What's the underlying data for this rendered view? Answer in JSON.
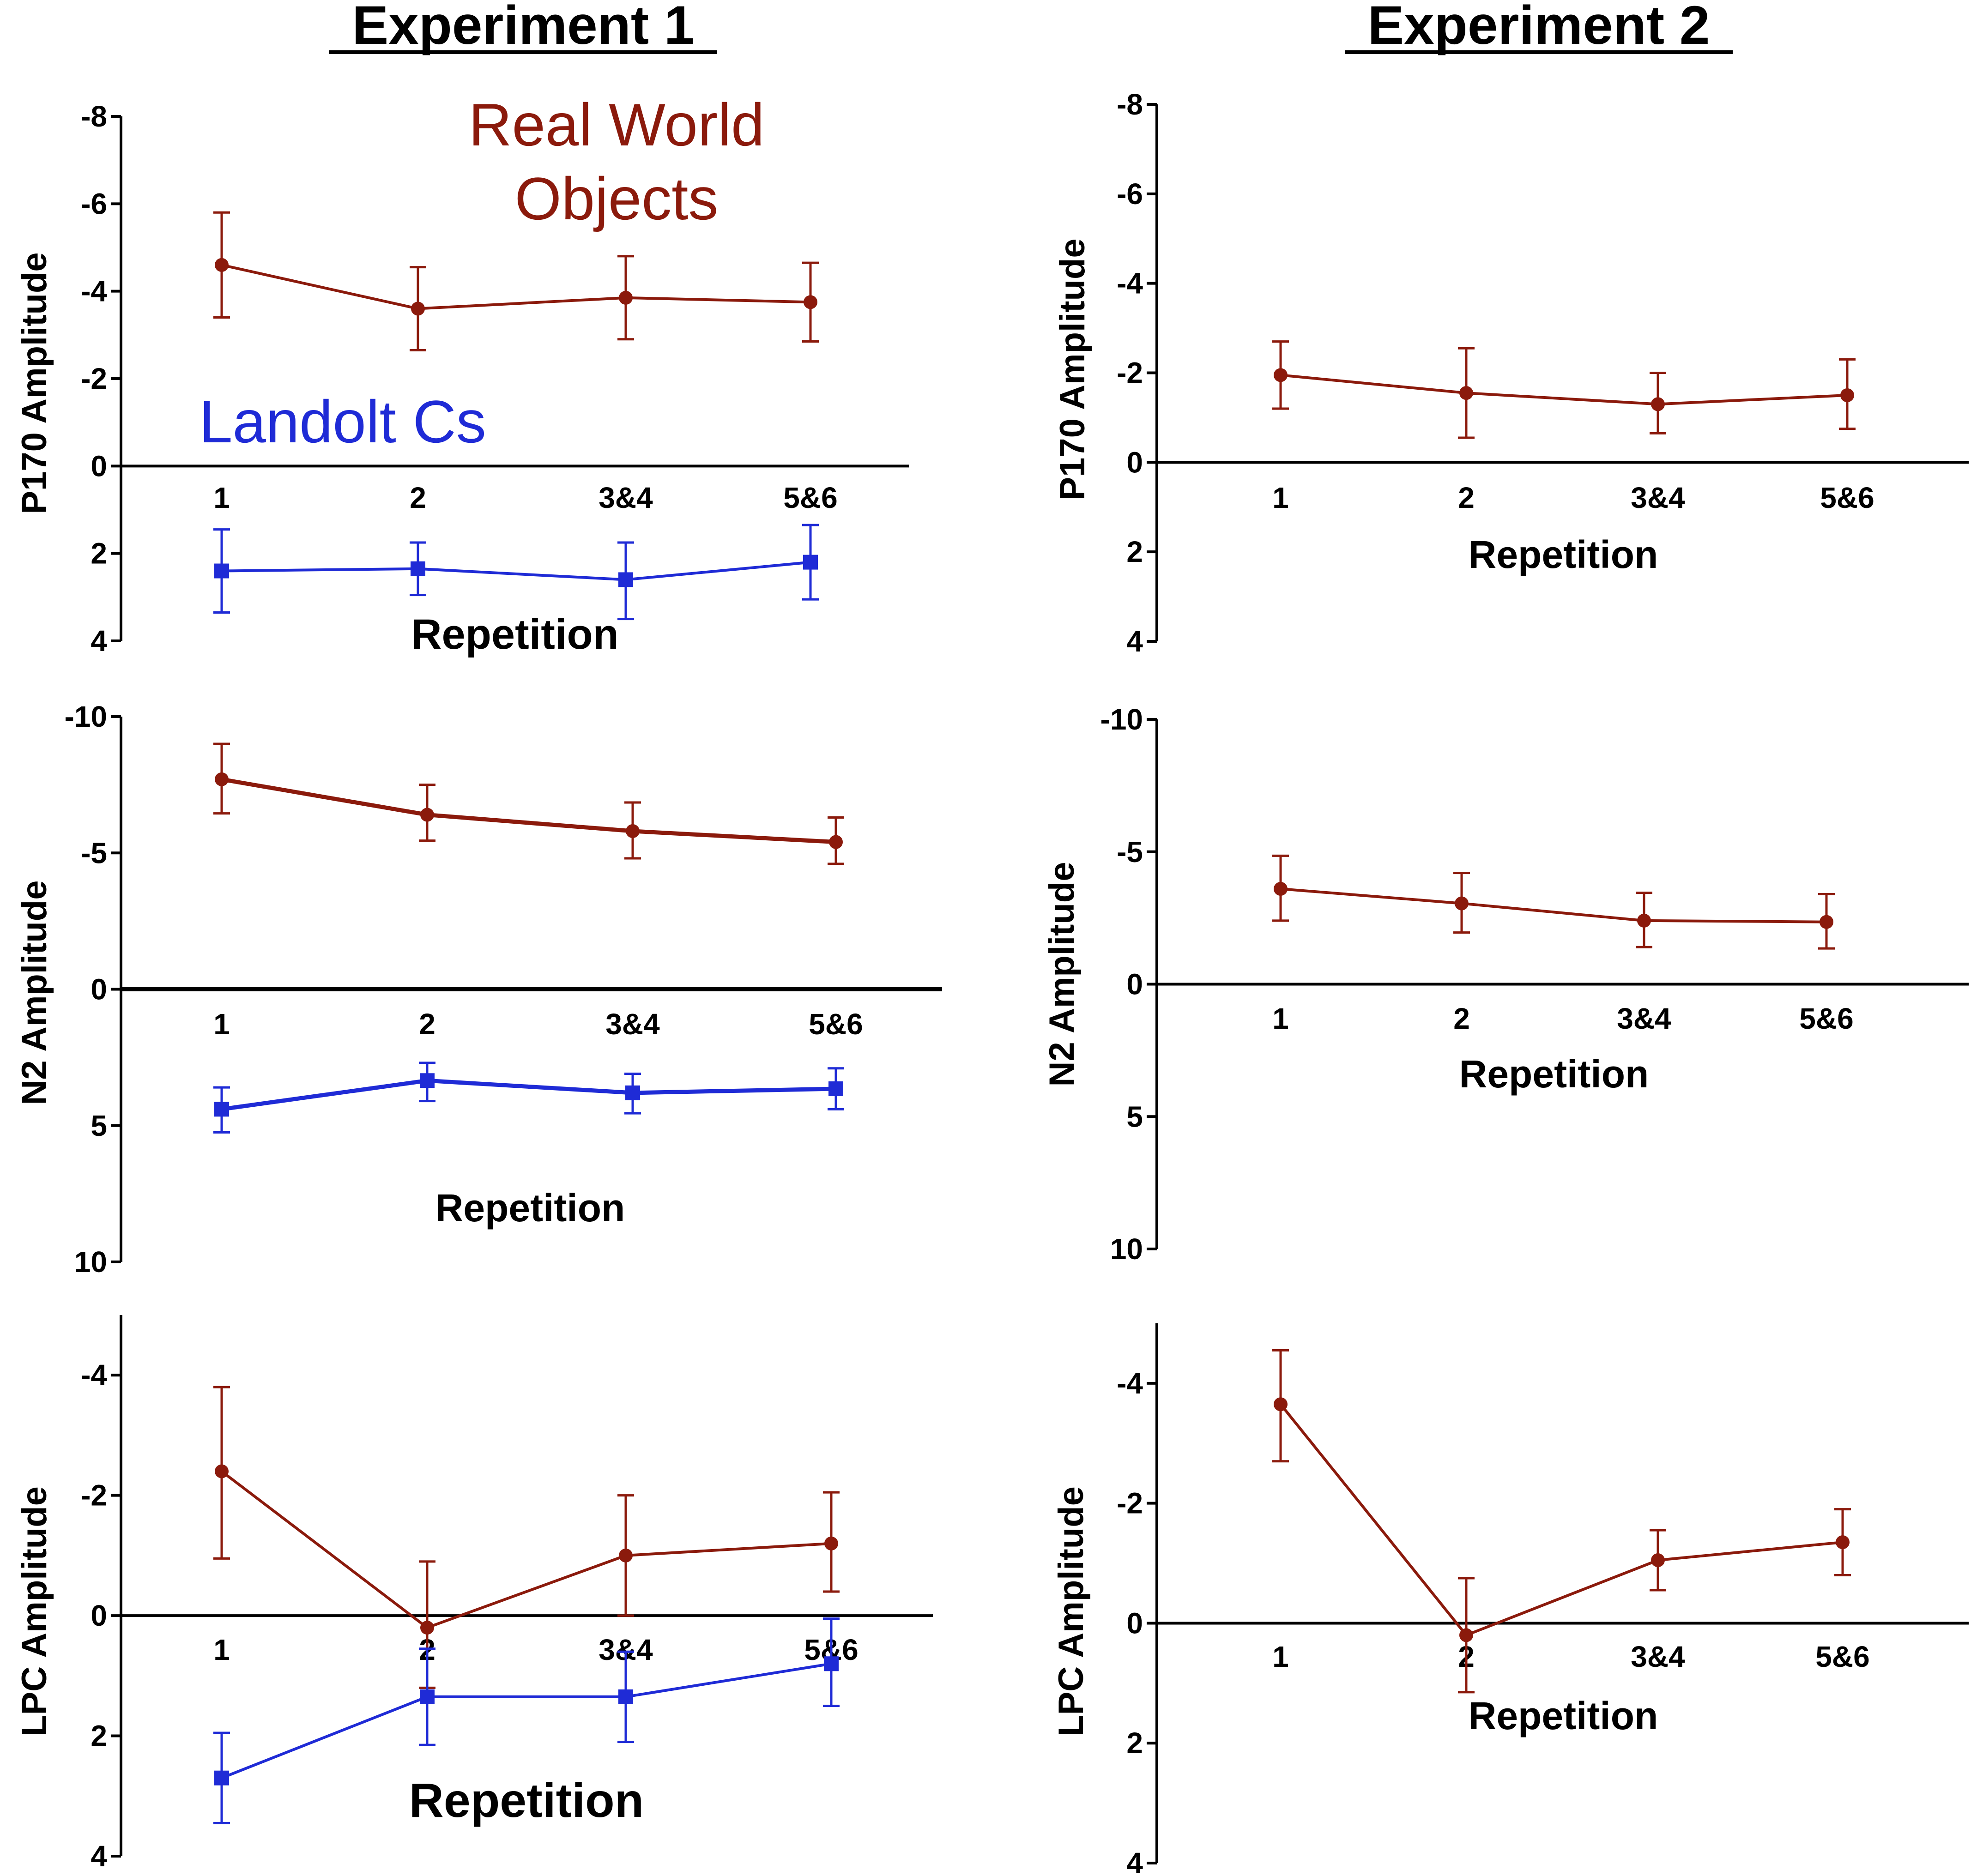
{
  "headings": {
    "experiment_1": "Experiment 1",
    "experiment_2": "Experiment 2"
  },
  "legend": {
    "real_world_line1": "Real World",
    "real_world_line2": "Objects",
    "landolt": "Landolt Cs"
  },
  "colors": {
    "real_world": "#8B1A0C",
    "landolt": "#1F2BD6",
    "axis": "#000000"
  },
  "chart_data": [
    {
      "id": "exp1_p170",
      "type": "line",
      "panel": "Experiment 1",
      "ylabel": "P170 Amplitude",
      "xlabel": "Repetition",
      "categories": [
        "1",
        "2",
        "3&4",
        "5&6"
      ],
      "y_axis": {
        "min": -8,
        "max": 4,
        "inverted": true,
        "ticks": [
          -8,
          -6,
          -4,
          -2,
          0,
          2,
          4
        ],
        "tick_labels": [
          "-8",
          "-6",
          "-4",
          "-2",
          "0",
          "2",
          "4"
        ]
      },
      "series": [
        {
          "name": "Real World Objects",
          "color_key": "real_world",
          "marker": "circle",
          "values": [
            -4.6,
            -3.6,
            -3.85,
            -3.75
          ],
          "err_low": [
            -3.4,
            -2.65,
            -2.9,
            -2.85
          ],
          "err_high": [
            -5.8,
            -4.55,
            -4.8,
            -4.65
          ]
        },
        {
          "name": "Landolt Cs",
          "color_key": "landolt",
          "marker": "square",
          "values": [
            2.4,
            2.35,
            2.6,
            2.2
          ],
          "err_low": [
            1.45,
            1.75,
            1.75,
            1.35
          ],
          "err_high": [
            3.35,
            2.95,
            3.5,
            3.05
          ]
        }
      ]
    },
    {
      "id": "exp1_n2",
      "type": "line",
      "panel": "Experiment 1",
      "ylabel": "N2 Amplitude",
      "xlabel": "Repetition",
      "categories": [
        "1",
        "2",
        "3&4",
        "5&6"
      ],
      "y_axis": {
        "min": -10,
        "max": 10,
        "inverted": true,
        "ticks": [
          -10,
          -5,
          0,
          5,
          10
        ],
        "tick_labels": [
          "-10",
          "-5",
          "0",
          "5",
          "10"
        ]
      },
      "series": [
        {
          "name": "Real World Objects",
          "color_key": "real_world",
          "marker": "circle",
          "values": [
            -7.7,
            -6.4,
            -5.8,
            -5.4
          ],
          "err_low": [
            -6.45,
            -5.45,
            -4.8,
            -4.6
          ],
          "err_high": [
            -9.0,
            -7.5,
            -6.85,
            -6.3
          ]
        },
        {
          "name": "Landolt Cs",
          "color_key": "landolt",
          "marker": "square",
          "values": [
            4.4,
            3.35,
            3.8,
            3.65
          ],
          "err_low": [
            3.6,
            2.7,
            3.1,
            2.9
          ],
          "err_high": [
            5.25,
            4.1,
            4.55,
            4.4
          ]
        }
      ]
    },
    {
      "id": "exp1_lpc",
      "type": "line",
      "panel": "Experiment 1",
      "ylabel": "LPC Amplitude",
      "xlabel": "Repetition",
      "categories": [
        "1",
        "2",
        "3&4",
        "5&6"
      ],
      "y_axis": {
        "min": -5,
        "max": 4,
        "inverted": true,
        "ticks": [
          -4,
          -2,
          0,
          2,
          4
        ],
        "tick_labels": [
          "-4",
          "-2",
          "0",
          "2",
          "4"
        ]
      },
      "series": [
        {
          "name": "Real World Objects",
          "color_key": "real_world",
          "marker": "circle",
          "values": [
            -2.4,
            0.2,
            -1.0,
            -1.2
          ],
          "err_low": [
            -0.95,
            1.2,
            0.0,
            -0.4
          ],
          "err_high": [
            -3.8,
            -0.9,
            -2.0,
            -2.05
          ]
        },
        {
          "name": "Landolt Cs",
          "color_key": "landolt",
          "marker": "square",
          "values": [
            2.7,
            1.35,
            1.35,
            0.8
          ],
          "err_low": [
            1.95,
            0.55,
            0.6,
            0.05
          ],
          "err_high": [
            3.45,
            2.15,
            2.1,
            1.5
          ]
        }
      ]
    },
    {
      "id": "exp2_p170",
      "type": "line",
      "panel": "Experiment 2",
      "ylabel": "P170 Amplitude",
      "xlabel": "Repetition",
      "categories": [
        "1",
        "2",
        "3&4",
        "5&6"
      ],
      "y_axis": {
        "min": -8,
        "max": 4,
        "inverted": true,
        "ticks": [
          -8,
          -6,
          -4,
          -2,
          0,
          2,
          4
        ],
        "tick_labels": [
          "-8",
          "-6",
          "-4",
          "-2",
          "0",
          "2",
          "4"
        ]
      },
      "series": [
        {
          "name": "Real World Objects",
          "color_key": "real_world",
          "marker": "circle",
          "values": [
            -1.95,
            -1.55,
            -1.3,
            -1.5
          ],
          "err_low": [
            -1.2,
            -0.55,
            -0.65,
            -0.75
          ],
          "err_high": [
            -2.7,
            -2.55,
            -2.0,
            -2.3
          ]
        }
      ]
    },
    {
      "id": "exp2_n2",
      "type": "line",
      "panel": "Experiment 2",
      "ylabel": "N2 Amplitude",
      "xlabel": "Repetition",
      "categories": [
        "1",
        "2",
        "3&4",
        "5&6"
      ],
      "y_axis": {
        "min": -10,
        "max": 10,
        "inverted": true,
        "ticks": [
          -10,
          -5,
          0,
          5,
          10
        ],
        "tick_labels": [
          "-10",
          "-5",
          "0",
          "5",
          "10"
        ]
      },
      "series": [
        {
          "name": "Real World Objects",
          "color_key": "real_world",
          "marker": "circle",
          "values": [
            -3.6,
            -3.05,
            -2.4,
            -2.35
          ],
          "err_low": [
            -2.4,
            -1.95,
            -1.4,
            -1.35
          ],
          "err_high": [
            -4.85,
            -4.2,
            -3.45,
            -3.4
          ]
        }
      ]
    },
    {
      "id": "exp2_lpc",
      "type": "line",
      "panel": "Experiment 2",
      "ylabel": "LPC Amplitude",
      "xlabel": "Repetition",
      "categories": [
        "1",
        "2",
        "3&4",
        "5&6"
      ],
      "y_axis": {
        "min": -5,
        "max": 4,
        "inverted": true,
        "ticks": [
          -4,
          -2,
          0,
          2,
          4
        ],
        "tick_labels": [
          "-4",
          "-2",
          "0",
          "2",
          "4"
        ]
      },
      "series": [
        {
          "name": "Real World Objects",
          "color_key": "real_world",
          "marker": "circle",
          "values": [
            -3.65,
            0.2,
            -1.05,
            -1.35
          ],
          "err_low": [
            -2.7,
            1.15,
            -0.55,
            -0.8
          ],
          "err_high": [
            -4.55,
            -0.75,
            -1.55,
            -1.9
          ]
        }
      ]
    }
  ]
}
